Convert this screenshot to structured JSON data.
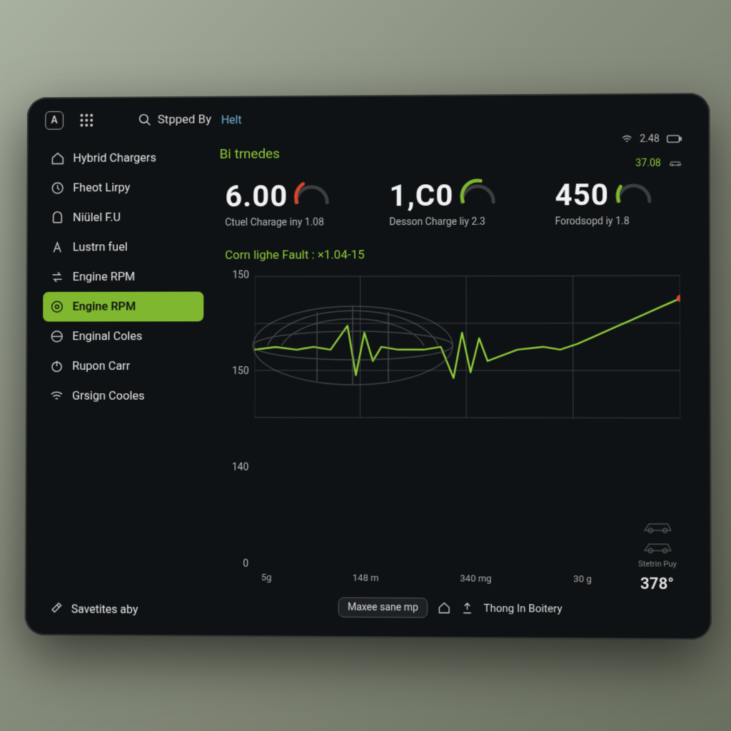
{
  "topbar": {
    "logo_letter": "A",
    "search_label": "Stpped By",
    "helt_label": "Helt"
  },
  "status": {
    "wifi_value": "2.48",
    "sub_value": "37.08"
  },
  "sidebar": {
    "items": [
      {
        "icon": "home",
        "label": "Hybrid Chargers"
      },
      {
        "icon": "clock",
        "label": "Fheot Lirpy"
      },
      {
        "icon": "arch",
        "label": "Niülel F.U"
      },
      {
        "icon": "a",
        "label": "Lustrn fuel"
      },
      {
        "icon": "swap",
        "label": "Engine RPM"
      },
      {
        "icon": "chat",
        "label": "Engine RPM"
      },
      {
        "icon": "ring",
        "label": "Enginal Coles"
      },
      {
        "icon": "power",
        "label": "Rupon Carr"
      },
      {
        "icon": "wifi",
        "label": "Grsign Cooles"
      }
    ],
    "active_index": 5,
    "footer_label": "Savetites aby"
  },
  "main": {
    "title": "Bi trnedes",
    "gauges": [
      {
        "value": "6.00",
        "label": "Ctuel Charage iny 1.08",
        "arc_color": "#d8452a",
        "arc_pct": 0.35
      },
      {
        "value": "1,C0",
        "label": "Desson Charge liy 2.3",
        "arc_color": "#7fb82e",
        "arc_pct": 0.55
      },
      {
        "value": "450",
        "label": "Forodsopd iy 1.8",
        "arc_color": "#7fb82e",
        "arc_pct": 0.25
      }
    ],
    "fault_text": "Corn lighe Fault :  ×1.04-15",
    "chart": {
      "y_ticks": [
        "150",
        "150",
        "140",
        "0"
      ],
      "x_ticks": [
        "5g",
        "148 m",
        "340 mg",
        "30 g",
        ""
      ],
      "line_color": "#8fce3a",
      "dot_color": "#d8452a",
      "grid_color": "#3a3f42",
      "points": [
        [
          0.0,
          0.52
        ],
        [
          0.05,
          0.5
        ],
        [
          0.1,
          0.52
        ],
        [
          0.14,
          0.5
        ],
        [
          0.18,
          0.52
        ],
        [
          0.22,
          0.35
        ],
        [
          0.24,
          0.7
        ],
        [
          0.26,
          0.4
        ],
        [
          0.28,
          0.6
        ],
        [
          0.3,
          0.5
        ],
        [
          0.34,
          0.52
        ],
        [
          0.4,
          0.52
        ],
        [
          0.44,
          0.5
        ],
        [
          0.47,
          0.72
        ],
        [
          0.49,
          0.4
        ],
        [
          0.51,
          0.68
        ],
        [
          0.53,
          0.44
        ],
        [
          0.55,
          0.6
        ],
        [
          0.62,
          0.52
        ],
        [
          0.68,
          0.5
        ],
        [
          0.72,
          0.52
        ],
        [
          0.76,
          0.48
        ],
        [
          0.79,
          0.44
        ],
        [
          0.82,
          0.4
        ],
        [
          0.85,
          0.36
        ],
        [
          0.88,
          0.32
        ],
        [
          0.91,
          0.28
        ],
        [
          0.94,
          0.24
        ],
        [
          0.97,
          0.2
        ],
        [
          1.0,
          0.16
        ]
      ]
    },
    "mini_label": "Stetrin Puy",
    "temp": "378°"
  },
  "bottombar": {
    "pill_label": "Maxee sane mp",
    "center_label": "Thong In Boitery"
  },
  "colors": {
    "accent": "#8fce3a",
    "bg": "#0f1214",
    "text": "#e8e8e8"
  }
}
